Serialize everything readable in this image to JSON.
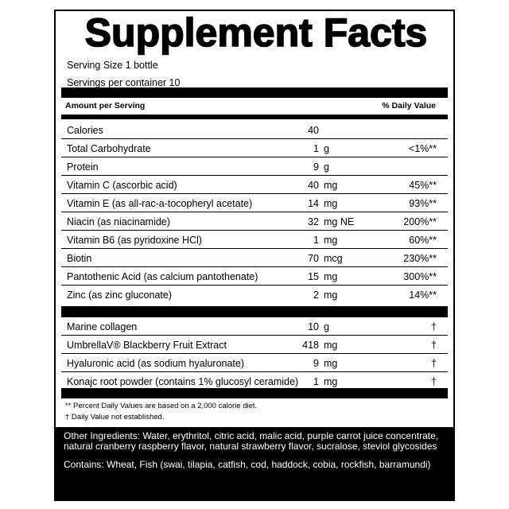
{
  "title": "Supplement Facts",
  "serving_size": "Serving Size 1 bottle",
  "servings_per_container": "Servings per container 10",
  "header": {
    "amount": "Amount per Serving",
    "dv": "% Daily Value"
  },
  "nutrients": [
    {
      "name": "Calories",
      "amount": "40",
      "unit": "",
      "dv": ""
    },
    {
      "name": "Total Carbohydrate",
      "amount": "1",
      "unit": "g",
      "dv": "<1%**"
    },
    {
      "name": "Protein",
      "amount": "9",
      "unit": "g",
      "dv": ""
    },
    {
      "name": "Vitamin C (ascorbic acid)",
      "amount": "40",
      "unit": "mg",
      "dv": "45%**"
    },
    {
      "name": "Vitamin E (as all-rac-a-tocopheryl acetate)",
      "amount": "14",
      "unit": "mg",
      "dv": "93%**"
    },
    {
      "name": "Niacin (as niacinamide)",
      "amount": "32",
      "unit": "mg NE",
      "dv": "200%**"
    },
    {
      "name": "Vitamin B6 (as pyridoxine HCl)",
      "amount": "1",
      "unit": "mg",
      "dv": "60%**"
    },
    {
      "name": "Biotin",
      "amount": "70",
      "unit": "mcg",
      "dv": "230%**"
    },
    {
      "name": "Pantothenic Acid (as calcium pantothenate)",
      "amount": "15",
      "unit": "mg",
      "dv": "300%**"
    },
    {
      "name": "Zinc (as zinc gluconate)",
      "amount": "2",
      "unit": "mg",
      "dv": "14%**"
    }
  ],
  "other": [
    {
      "name": "Marine collagen",
      "amount": "10",
      "unit": "g",
      "dv": "†"
    },
    {
      "name": "UmbrellaV® Blackberry Fruit Extract",
      "amount": "418",
      "unit": "mg",
      "dv": "†"
    },
    {
      "name": "Hyaluronic acid (as sodium hyaluronate)",
      "amount": "9",
      "unit": "mg",
      "dv": "†"
    },
    {
      "name": "Konajc root powder (contains 1% glucosyl ceramide)",
      "amount": "1",
      "unit": "mg",
      "dv": "†"
    }
  ],
  "footnotes": [
    "** Percent Daily Values are based on a 2,000 calorie diet.",
    "† Daily Value not established."
  ],
  "other_ingredients": "Other Ingredients: Water, erythritol, citric acid, malic acid, purple carrot juice concentrate, natural cranberry raspberry flavor, natural strawberry flavor, sucralose, steviol glycosides",
  "contains": "Contains: Wheat, Fish (swai, tilapia, catfish, cod, haddock, cobia, rockfish, barramundi)"
}
